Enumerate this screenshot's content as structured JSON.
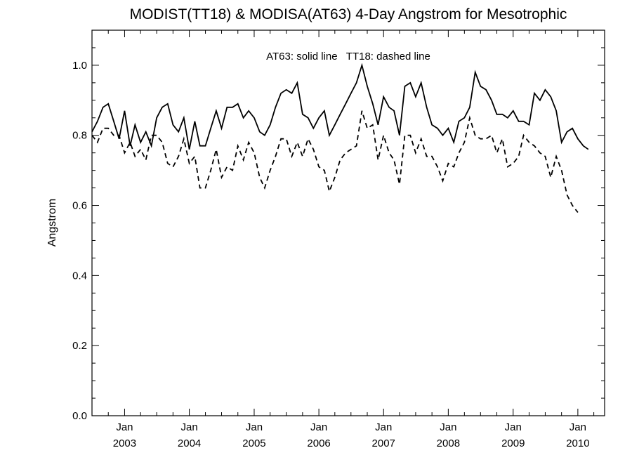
{
  "chart_data": {
    "type": "line",
    "title": "MODIST(TT18) & MODISA(AT63) 4-Day Angstrom for Mesotrophic",
    "annotation": "AT63: solid line   TT18: dashed line",
    "xlabel": "",
    "ylabel": "Angstrom",
    "x_range": [
      "2002-07-01",
      "2010-06-01"
    ],
    "ylim": [
      0,
      1.1
    ],
    "y_ticks": [
      0.0,
      0.2,
      0.4,
      0.6,
      0.8,
      1.0
    ],
    "y_tick_labels": [
      "0.0",
      "0.2",
      "0.4",
      "0.6",
      "0.8",
      "1.0"
    ],
    "x_ticks": [
      {
        "date": "2003-01-01",
        "month": "Jan",
        "year": "2003"
      },
      {
        "date": "2004-01-01",
        "month": "Jan",
        "year": "2004"
      },
      {
        "date": "2005-01-01",
        "month": "Jan",
        "year": "2005"
      },
      {
        "date": "2006-01-01",
        "month": "Jan",
        "year": "2006"
      },
      {
        "date": "2007-01-01",
        "month": "Jan",
        "year": "2007"
      },
      {
        "date": "2008-01-01",
        "month": "Jan",
        "year": "2008"
      },
      {
        "date": "2009-01-01",
        "month": "Jan",
        "year": "2009"
      },
      {
        "date": "2010-01-01",
        "month": "Jan",
        "year": "2010"
      }
    ],
    "grid": false,
    "series": [
      {
        "name": "AT63",
        "style": "solid",
        "color": "#000000",
        "points": [
          [
            "2002-07-01",
            0.81
          ],
          [
            "2002-08-01",
            0.84
          ],
          [
            "2002-09-01",
            0.88
          ],
          [
            "2002-10-01",
            0.89
          ],
          [
            "2002-11-01",
            0.84
          ],
          [
            "2002-12-01",
            0.79
          ],
          [
            "2003-01-01",
            0.87
          ],
          [
            "2003-02-01",
            0.77
          ],
          [
            "2003-03-01",
            0.83
          ],
          [
            "2003-04-01",
            0.78
          ],
          [
            "2003-05-01",
            0.81
          ],
          [
            "2003-06-01",
            0.77
          ],
          [
            "2003-07-01",
            0.85
          ],
          [
            "2003-08-01",
            0.88
          ],
          [
            "2003-09-01",
            0.89
          ],
          [
            "2003-10-01",
            0.83
          ],
          [
            "2003-11-01",
            0.81
          ],
          [
            "2003-12-01",
            0.85
          ],
          [
            "2004-01-01",
            0.76
          ],
          [
            "2004-02-01",
            0.84
          ],
          [
            "2004-03-01",
            0.77
          ],
          [
            "2004-04-01",
            0.77
          ],
          [
            "2004-05-01",
            0.82
          ],
          [
            "2004-06-01",
            0.87
          ],
          [
            "2004-07-01",
            0.82
          ],
          [
            "2004-08-01",
            0.88
          ],
          [
            "2004-09-01",
            0.88
          ],
          [
            "2004-10-01",
            0.89
          ],
          [
            "2004-11-01",
            0.85
          ],
          [
            "2004-12-01",
            0.87
          ],
          [
            "2005-01-01",
            0.85
          ],
          [
            "2005-02-01",
            0.81
          ],
          [
            "2005-03-01",
            0.8
          ],
          [
            "2005-04-01",
            0.83
          ],
          [
            "2005-05-01",
            0.88
          ],
          [
            "2005-06-01",
            0.92
          ],
          [
            "2005-07-01",
            0.93
          ],
          [
            "2005-08-01",
            0.92
          ],
          [
            "2005-09-01",
            0.95
          ],
          [
            "2005-10-01",
            0.86
          ],
          [
            "2005-11-01",
            0.85
          ],
          [
            "2005-12-01",
            0.82
          ],
          [
            "2006-01-01",
            0.85
          ],
          [
            "2006-02-01",
            0.87
          ],
          [
            "2006-03-01",
            0.8
          ],
          [
            "2006-04-01",
            0.83
          ],
          [
            "2006-05-01",
            0.86
          ],
          [
            "2006-06-01",
            0.89
          ],
          [
            "2006-07-01",
            0.92
          ],
          [
            "2006-08-01",
            0.95
          ],
          [
            "2006-09-01",
            1.0
          ],
          [
            "2006-10-01",
            0.94
          ],
          [
            "2006-11-01",
            0.89
          ],
          [
            "2006-12-01",
            0.83
          ],
          [
            "2007-01-01",
            0.91
          ],
          [
            "2007-02-01",
            0.88
          ],
          [
            "2007-03-01",
            0.87
          ],
          [
            "2007-04-01",
            0.8
          ],
          [
            "2007-05-01",
            0.94
          ],
          [
            "2007-06-01",
            0.95
          ],
          [
            "2007-07-01",
            0.91
          ],
          [
            "2007-08-01",
            0.95
          ],
          [
            "2007-09-01",
            0.88
          ],
          [
            "2007-10-01",
            0.83
          ],
          [
            "2007-11-01",
            0.82
          ],
          [
            "2007-12-01",
            0.8
          ],
          [
            "2008-01-01",
            0.82
          ],
          [
            "2008-02-01",
            0.78
          ],
          [
            "2008-03-01",
            0.84
          ],
          [
            "2008-04-01",
            0.85
          ],
          [
            "2008-05-01",
            0.88
          ],
          [
            "2008-06-01",
            0.98
          ],
          [
            "2008-07-01",
            0.94
          ],
          [
            "2008-08-01",
            0.93
          ],
          [
            "2008-09-01",
            0.9
          ],
          [
            "2008-10-01",
            0.86
          ],
          [
            "2008-11-01",
            0.86
          ],
          [
            "2008-12-01",
            0.85
          ],
          [
            "2009-01-01",
            0.87
          ],
          [
            "2009-02-01",
            0.84
          ],
          [
            "2009-03-01",
            0.84
          ],
          [
            "2009-04-01",
            0.83
          ],
          [
            "2009-05-01",
            0.92
          ],
          [
            "2009-06-01",
            0.9
          ],
          [
            "2009-07-01",
            0.93
          ],
          [
            "2009-08-01",
            0.91
          ],
          [
            "2009-09-01",
            0.87
          ],
          [
            "2009-10-01",
            0.78
          ],
          [
            "2009-11-01",
            0.81
          ],
          [
            "2009-12-01",
            0.82
          ],
          [
            "2010-01-01",
            0.79
          ],
          [
            "2010-02-01",
            0.77
          ],
          [
            "2010-03-01",
            0.76
          ]
        ]
      },
      {
        "name": "TT18",
        "style": "dashed",
        "color": "#000000",
        "points": [
          [
            "2002-07-01",
            0.8
          ],
          [
            "2002-08-01",
            0.78
          ],
          [
            "2002-09-01",
            0.82
          ],
          [
            "2002-10-01",
            0.82
          ],
          [
            "2002-11-01",
            0.8
          ],
          [
            "2002-12-01",
            0.8
          ],
          [
            "2003-01-01",
            0.75
          ],
          [
            "2003-02-01",
            0.78
          ],
          [
            "2003-03-01",
            0.74
          ],
          [
            "2003-04-01",
            0.76
          ],
          [
            "2003-05-01",
            0.73
          ],
          [
            "2003-06-01",
            0.8
          ],
          [
            "2003-07-01",
            0.8
          ],
          [
            "2003-08-01",
            0.78
          ],
          [
            "2003-09-01",
            0.72
          ],
          [
            "2003-10-01",
            0.71
          ],
          [
            "2003-11-01",
            0.74
          ],
          [
            "2003-12-01",
            0.79
          ],
          [
            "2004-01-01",
            0.72
          ],
          [
            "2004-02-01",
            0.74
          ],
          [
            "2004-03-01",
            0.65
          ],
          [
            "2004-04-01",
            0.65
          ],
          [
            "2004-05-01",
            0.7
          ],
          [
            "2004-06-01",
            0.76
          ],
          [
            "2004-07-01",
            0.68
          ],
          [
            "2004-08-01",
            0.71
          ],
          [
            "2004-09-01",
            0.7
          ],
          [
            "2004-10-01",
            0.77
          ],
          [
            "2004-11-01",
            0.73
          ],
          [
            "2004-12-01",
            0.78
          ],
          [
            "2005-01-01",
            0.75
          ],
          [
            "2005-02-01",
            0.68
          ],
          [
            "2005-03-01",
            0.65
          ],
          [
            "2005-04-01",
            0.7
          ],
          [
            "2005-05-01",
            0.74
          ],
          [
            "2005-06-01",
            0.79
          ],
          [
            "2005-07-01",
            0.79
          ],
          [
            "2005-08-01",
            0.74
          ],
          [
            "2005-09-01",
            0.78
          ],
          [
            "2005-10-01",
            0.74
          ],
          [
            "2005-11-01",
            0.79
          ],
          [
            "2005-12-01",
            0.76
          ],
          [
            "2006-01-01",
            0.71
          ],
          [
            "2006-02-01",
            0.7
          ],
          [
            "2006-03-01",
            0.64
          ],
          [
            "2006-04-01",
            0.68
          ],
          [
            "2006-05-01",
            0.73
          ],
          [
            "2006-06-01",
            0.75
          ],
          [
            "2006-07-01",
            0.76
          ],
          [
            "2006-08-01",
            0.77
          ],
          [
            "2006-09-01",
            0.87
          ],
          [
            "2006-10-01",
            0.82
          ],
          [
            "2006-11-01",
            0.83
          ],
          [
            "2006-12-01",
            0.73
          ],
          [
            "2007-01-01",
            0.8
          ],
          [
            "2007-02-01",
            0.75
          ],
          [
            "2007-03-01",
            0.73
          ],
          [
            "2007-04-01",
            0.66
          ],
          [
            "2007-05-01",
            0.8
          ],
          [
            "2007-06-01",
            0.8
          ],
          [
            "2007-07-01",
            0.75
          ],
          [
            "2007-08-01",
            0.79
          ],
          [
            "2007-09-01",
            0.74
          ],
          [
            "2007-10-01",
            0.74
          ],
          [
            "2007-11-01",
            0.71
          ],
          [
            "2007-12-01",
            0.67
          ],
          [
            "2008-01-01",
            0.72
          ],
          [
            "2008-02-01",
            0.71
          ],
          [
            "2008-03-01",
            0.75
          ],
          [
            "2008-04-01",
            0.78
          ],
          [
            "2008-05-01",
            0.85
          ],
          [
            "2008-06-01",
            0.8
          ],
          [
            "2008-07-01",
            0.79
          ],
          [
            "2008-08-01",
            0.79
          ],
          [
            "2008-09-01",
            0.8
          ],
          [
            "2008-10-01",
            0.75
          ],
          [
            "2008-11-01",
            0.79
          ],
          [
            "2008-12-01",
            0.71
          ],
          [
            "2009-01-01",
            0.72
          ],
          [
            "2009-02-01",
            0.74
          ],
          [
            "2009-03-01",
            0.8
          ],
          [
            "2009-04-01",
            0.78
          ],
          [
            "2009-05-01",
            0.77
          ],
          [
            "2009-06-01",
            0.75
          ],
          [
            "2009-07-01",
            0.74
          ],
          [
            "2009-08-01",
            0.68
          ],
          [
            "2009-09-01",
            0.74
          ],
          [
            "2009-10-01",
            0.7
          ],
          [
            "2009-11-01",
            0.63
          ],
          [
            "2009-12-01",
            0.6
          ],
          [
            "2010-01-01",
            0.58
          ]
        ]
      }
    ]
  }
}
